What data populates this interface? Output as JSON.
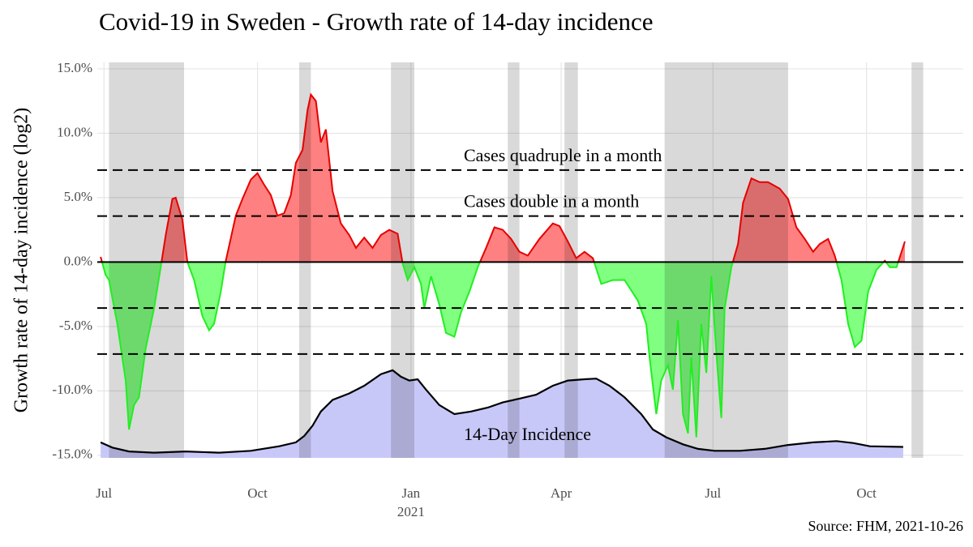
{
  "chart_data": {
    "type": "area",
    "title": "Covid-19 in Sweden - Growth rate of 14-day incidence",
    "ylabel": "Growth rate of 14-day incidence (log2)",
    "source": "Source: FHM, 2021-10-26",
    "xlim": [
      "2020-06-27",
      "2021-11-28"
    ],
    "xticks": [
      {
        "value": "2020-07-01",
        "label": "Jul"
      },
      {
        "value": "2020-10-01",
        "label": "Oct"
      },
      {
        "value": "2021-01-01",
        "label": "Jan\n2021"
      },
      {
        "value": "2021-04-01",
        "label": "Apr"
      },
      {
        "value": "2021-07-01",
        "label": "Jul"
      },
      {
        "value": "2021-10-01",
        "label": "Oct"
      }
    ],
    "ylim": [
      -15.2,
      15.5
    ],
    "yticks": [
      {
        "value": -15,
        "label": "-15.0%"
      },
      {
        "value": -10,
        "label": "-10.0%"
      },
      {
        "value": -5,
        "label": "-5.0%"
      },
      {
        "value": 0,
        "label": "0.0%"
      },
      {
        "value": 5,
        "label": "5.0%"
      },
      {
        "value": 10,
        "label": "10.0%"
      },
      {
        "value": 15,
        "label": "15.0%"
      }
    ],
    "grid": true,
    "growth": {
      "x": [
        "2020-06-29",
        "2020-07-02",
        "2020-07-04",
        "2020-07-09",
        "2020-07-14",
        "2020-07-16",
        "2020-07-19",
        "2020-07-22",
        "2020-07-26",
        "2020-07-31",
        "2020-08-04",
        "2020-08-07",
        "2020-08-11",
        "2020-08-13",
        "2020-08-17",
        "2020-08-20",
        "2020-08-24",
        "2020-08-29",
        "2020-09-02",
        "2020-09-05",
        "2020-09-09",
        "2020-09-12",
        "2020-09-18",
        "2020-09-22",
        "2020-09-27",
        "2020-10-01",
        "2020-10-05",
        "2020-10-09",
        "2020-10-13",
        "2020-10-17",
        "2020-10-21",
        "2020-10-24",
        "2020-10-28",
        "2020-10-31",
        "2020-11-02",
        "2020-11-05",
        "2020-11-08",
        "2020-11-11",
        "2020-11-15",
        "2020-11-20",
        "2020-11-25",
        "2020-11-29",
        "2020-12-04",
        "2020-12-09",
        "2020-12-14",
        "2020-12-19",
        "2020-12-24",
        "2020-12-27",
        "2020-12-30",
        "2021-01-03",
        "2021-01-07",
        "2021-01-09",
        "2021-01-13",
        "2021-01-18",
        "2021-01-22",
        "2021-01-27",
        "2021-01-31",
        "2021-02-05",
        "2021-02-10",
        "2021-02-15",
        "2021-02-20",
        "2021-02-25",
        "2021-03-02",
        "2021-03-07",
        "2021-03-12",
        "2021-03-19",
        "2021-03-27",
        "2021-03-31",
        "2021-04-05",
        "2021-04-10",
        "2021-04-15",
        "2021-04-20",
        "2021-04-25",
        "2021-05-02",
        "2021-05-09",
        "2021-05-17",
        "2021-05-22",
        "2021-05-24",
        "2021-05-28",
        "2021-05-31",
        "2021-06-04",
        "2021-06-07",
        "2021-06-10",
        "2021-06-13",
        "2021-06-16",
        "2021-06-18",
        "2021-06-21",
        "2021-06-24",
        "2021-06-27",
        "2021-06-30",
        "2021-07-03",
        "2021-07-06",
        "2021-07-08",
        "2021-07-12",
        "2021-07-16",
        "2021-07-19",
        "2021-07-24",
        "2021-07-29",
        "2021-08-03",
        "2021-08-10",
        "2021-08-15",
        "2021-08-20",
        "2021-08-25",
        "2021-08-30",
        "2021-09-03",
        "2021-09-08",
        "2021-09-12",
        "2021-09-16",
        "2021-09-20",
        "2021-09-24",
        "2021-09-28",
        "2021-10-02",
        "2021-10-07",
        "2021-10-12",
        "2021-10-15",
        "2021-10-19",
        "2021-10-22",
        "2021-10-24"
      ],
      "values": [
        0.4,
        -1.0,
        -1.4,
        -4.8,
        -9.2,
        -13.0,
        -11.1,
        -10.5,
        -6.7,
        -3.6,
        -0.4,
        2.1,
        4.9,
        5.0,
        3.3,
        0,
        -1.4,
        -4.2,
        -5.3,
        -4.8,
        -2.3,
        0.1,
        3.6,
        4.9,
        6.4,
        6.9,
        6.0,
        5.2,
        3.6,
        3.8,
        5.2,
        7.7,
        8.7,
        11.8,
        13.0,
        12.5,
        9.3,
        10.3,
        5.5,
        3.0,
        2.1,
        1.1,
        1.9,
        1.1,
        2.1,
        2.5,
        2.2,
        -0.1,
        -1.4,
        -0.4,
        -1.7,
        -3.6,
        -1.1,
        -3.3,
        -5.5,
        -5.8,
        -3.9,
        -2.3,
        -0.4,
        1.1,
        2.7,
        2.5,
        1.8,
        0.8,
        0.5,
        1.8,
        3.0,
        2.8,
        1.6,
        0.3,
        0.8,
        0.3,
        -1.7,
        -1.4,
        -1.4,
        -3.0,
        -4.8,
        -7.4,
        -11.8,
        -9.2,
        -8.0,
        -9.9,
        -4.5,
        -11.8,
        -13.3,
        -7.4,
        -13.6,
        -4.8,
        -8.6,
        -1.1,
        -7.0,
        -12.1,
        -3.6,
        -0.4,
        1.4,
        4.6,
        6.5,
        6.2,
        6.2,
        5.7,
        4.9,
        2.7,
        1.8,
        0.8,
        1.4,
        1.8,
        0.5,
        -1.4,
        -4.8,
        -6.6,
        -6.1,
        -2.3,
        -0.6,
        0.1,
        -0.4,
        -0.4,
        0.8,
        1.6
      ],
      "fill_above": "#ff8080",
      "fill_below": "#80ff80",
      "line_above": "#e60000",
      "line_below": "#22ee22"
    },
    "incidence": {
      "name": "14-Day Incidence",
      "x": [
        "2020-06-29",
        "2020-07-06",
        "2020-07-16",
        "2020-07-31",
        "2020-08-19",
        "2020-09-08",
        "2020-09-27",
        "2020-10-14",
        "2020-10-24",
        "2020-10-29",
        "2020-11-03",
        "2020-11-08",
        "2020-11-15",
        "2020-11-25",
        "2020-12-04",
        "2020-12-14",
        "2020-12-21",
        "2020-12-26",
        "2020-12-31",
        "2021-01-05",
        "2021-01-10",
        "2021-01-18",
        "2021-01-27",
        "2021-02-06",
        "2021-02-16",
        "2021-02-25",
        "2021-03-07",
        "2021-03-17",
        "2021-03-27",
        "2021-04-05",
        "2021-04-15",
        "2021-04-22",
        "2021-04-30",
        "2021-05-09",
        "2021-05-19",
        "2021-05-26",
        "2021-06-03",
        "2021-06-13",
        "2021-06-22",
        "2021-07-02",
        "2021-07-17",
        "2021-08-01",
        "2021-08-15",
        "2021-08-30",
        "2021-09-13",
        "2021-09-23",
        "2021-10-03",
        "2021-10-23"
      ],
      "values": [
        -14.0,
        -14.4,
        -14.7,
        -14.8,
        -14.7,
        -14.8,
        -14.65,
        -14.3,
        -14.0,
        -13.5,
        -12.7,
        -11.6,
        -10.7,
        -10.2,
        -9.6,
        -8.7,
        -8.4,
        -8.9,
        -9.2,
        -9.1,
        -9.9,
        -11.1,
        -11.8,
        -11.6,
        -11.3,
        -10.9,
        -10.6,
        -10.3,
        -9.6,
        -9.2,
        -9.1,
        -9.05,
        -9.6,
        -10.5,
        -11.8,
        -13.0,
        -13.6,
        -14.15,
        -14.5,
        -14.65,
        -14.65,
        -14.5,
        -14.2,
        -14.0,
        -13.9,
        -14.05,
        -14.3,
        -14.35
      ],
      "color": "#c8c8f8",
      "line_color": "#000000"
    },
    "reference_lines": [
      7.14,
      3.57,
      -3.57,
      -7.14
    ],
    "reference_labels": [
      "Cases quadruple in a month",
      "Cases double in a month"
    ],
    "shaded_periods": [
      [
        "2020-07-04",
        "2020-08-18"
      ],
      [
        "2020-10-26",
        "2020-11-02"
      ],
      [
        "2020-12-20",
        "2021-01-03"
      ],
      [
        "2021-02-28",
        "2021-03-07"
      ],
      [
        "2021-04-03",
        "2021-04-11"
      ],
      [
        "2021-06-02",
        "2021-08-15"
      ],
      [
        "2021-10-28",
        "2021-11-04"
      ]
    ],
    "shade_color": "#000000"
  }
}
